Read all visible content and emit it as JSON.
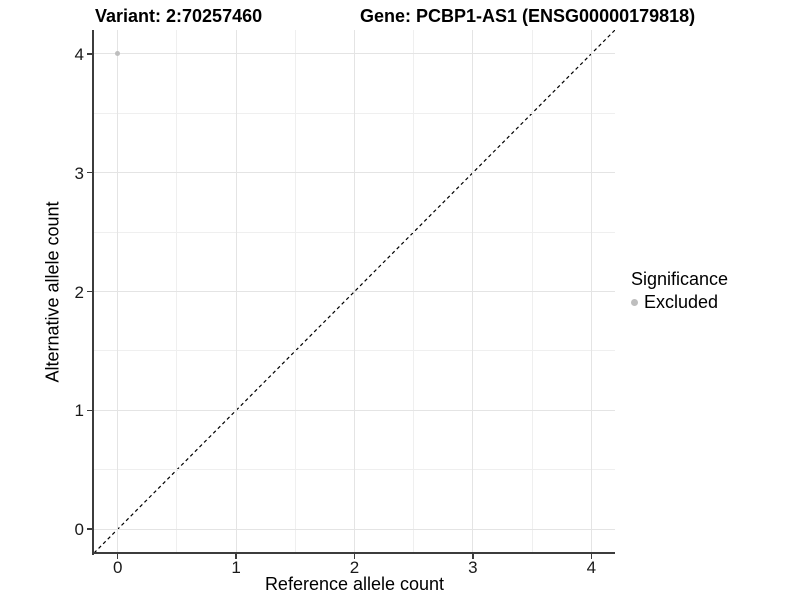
{
  "header": {
    "variant_title": "Variant: 2:70257460",
    "gene_title": "Gene: PCBP1-AS1 (ENSG00000179818)"
  },
  "axes": {
    "x_label": "Reference allele count",
    "y_label": "Alternative allele count"
  },
  "legend": {
    "title": "Significance",
    "items": [
      {
        "label": "Excluded",
        "color": "#bebebe"
      }
    ]
  },
  "chart_data": {
    "type": "scatter",
    "title": "Variant: 2:70257460    Gene: PCBP1-AS1 (ENSG00000179818)",
    "xlabel": "Reference allele count",
    "ylabel": "Alternative allele count",
    "xlim": [
      -0.2,
      4.2
    ],
    "ylim": [
      -0.2,
      4.2
    ],
    "x_ticks": [
      0,
      1,
      2,
      3,
      4
    ],
    "y_ticks": [
      0,
      1,
      2,
      3,
      4
    ],
    "x_minor_ticks": [
      0.5,
      1.5,
      2.5,
      3.5
    ],
    "y_minor_ticks": [
      0.5,
      1.5,
      2.5,
      3.5
    ],
    "grid": true,
    "points": [
      {
        "x": 0,
        "y": 4,
        "series": "Excluded"
      }
    ],
    "reference_line": {
      "type": "identity",
      "style": "dashed",
      "color": "#000000"
    },
    "legend_position": "right",
    "colors": {
      "point": "#bebebe",
      "grid_major": "#e4e4e4",
      "grid_minor": "#efefef",
      "axis": "#3c3c3c",
      "dashed_line": "#000000"
    }
  }
}
